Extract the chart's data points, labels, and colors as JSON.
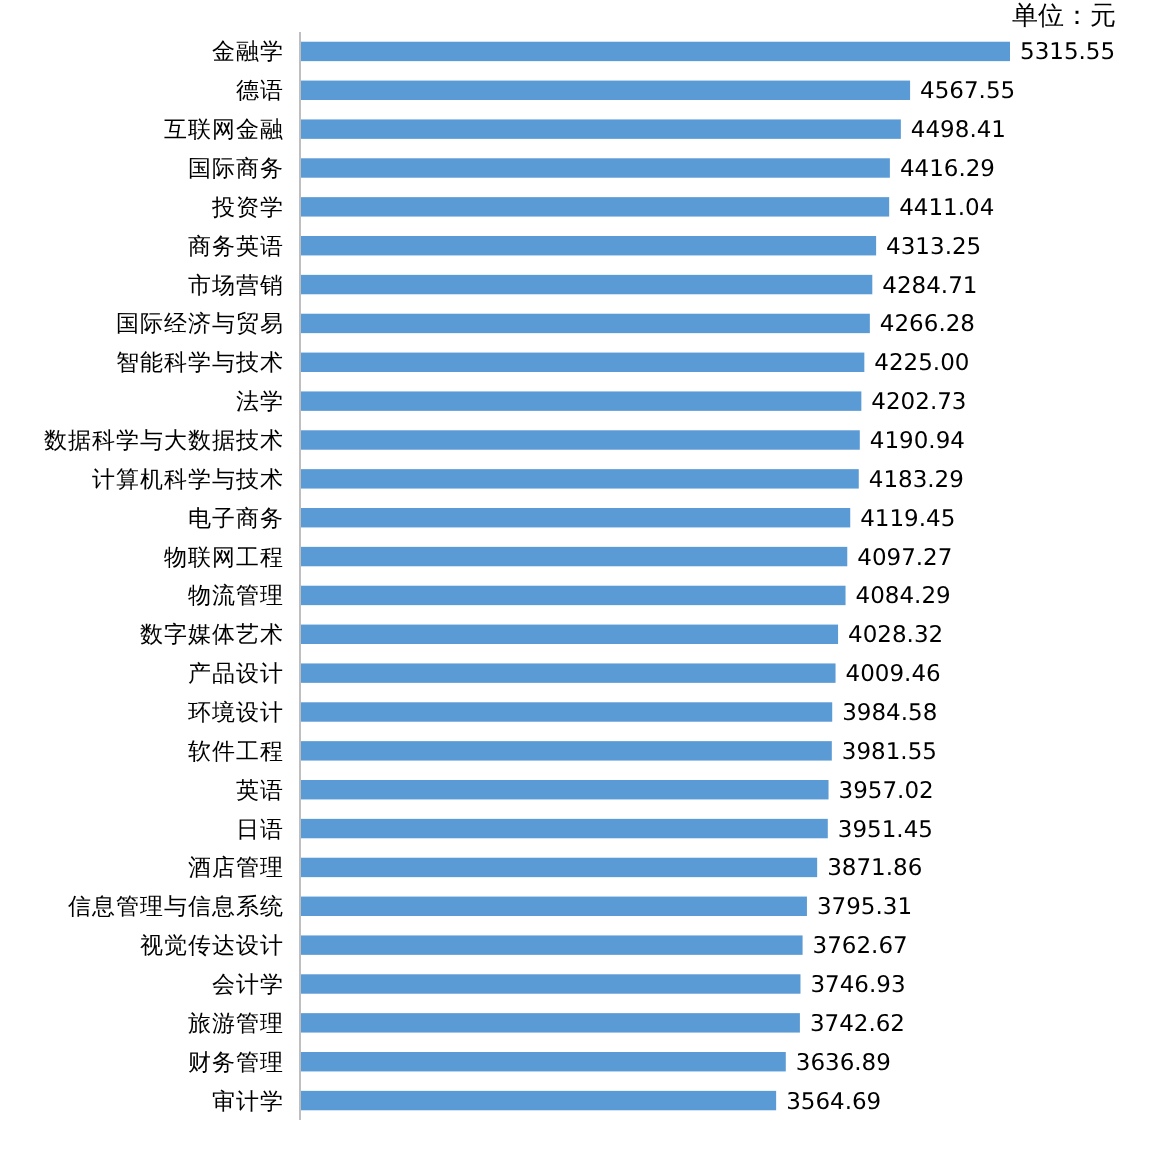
{
  "chart_data": {
    "type": "bar",
    "orientation": "horizontal",
    "color": "#5b9bd5",
    "annotations": [
      "单位：元"
    ],
    "categories": [
      "金融学",
      "德语",
      "互联网金融",
      "国际商务",
      "投资学",
      "商务英语",
      "市场营销",
      "国际经济与贸易",
      "智能科学与技术",
      "法学",
      "数据科学与大数据技术",
      "计算机科学与技术",
      "电子商务",
      "物联网工程",
      "物流管理",
      "数字媒体艺术",
      "产品设计",
      "环境设计",
      "软件工程",
      "英语",
      "日语",
      "酒店管理",
      "信息管理与信息系统",
      "视觉传达设计",
      "会计学",
      "旅游管理",
      "财务管理",
      "审计学"
    ],
    "values": [
      5315.55,
      4567.55,
      4498.41,
      4416.29,
      4411.04,
      4313.25,
      4284.71,
      4266.28,
      4225.0,
      4202.73,
      4190.94,
      4183.29,
      4119.45,
      4097.27,
      4084.29,
      4028.32,
      4009.46,
      3984.58,
      3981.55,
      3957.02,
      3951.45,
      3871.86,
      3795.31,
      3762.67,
      3746.93,
      3742.62,
      3636.89,
      3564.69
    ],
    "value_labels": [
      "5315.55",
      "4567.55",
      "4498.41",
      "4416.29",
      "4411.04",
      "4313.25",
      "4284.71",
      "4266.28",
      "4225.00",
      "4202.73",
      "4190.94",
      "4183.29",
      "4119.45",
      "4097.27",
      "4084.29",
      "4028.32",
      "4009.46",
      "3984.58",
      "3981.55",
      "3957.02",
      "3951.45",
      "3871.86",
      "3795.31",
      "3762.67",
      "3746.93",
      "3742.62",
      "3636.89",
      "3564.69"
    ]
  }
}
